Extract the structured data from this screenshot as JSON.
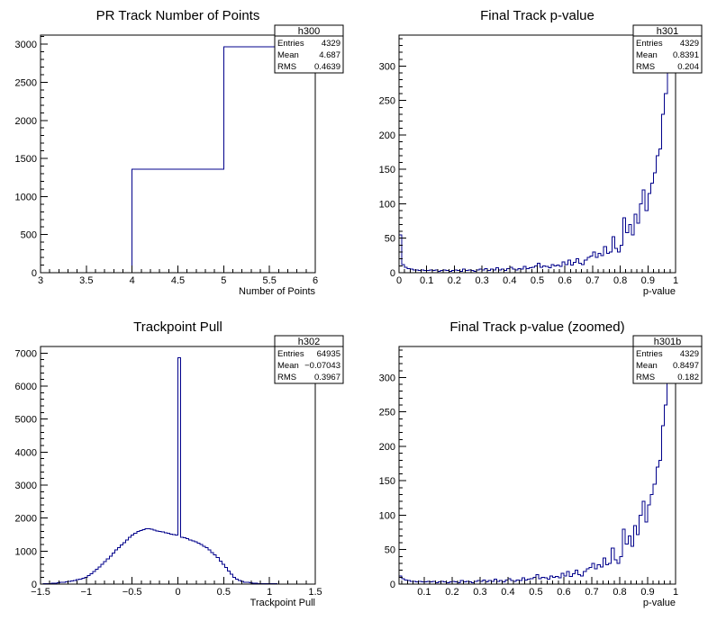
{
  "style": {
    "line_color": "#00008b",
    "axis_color": "#000000",
    "box_fill": "#ffffff"
  },
  "chart_data": [
    {
      "id": "h300",
      "type": "histogram",
      "title": "PR Track Number of Points",
      "xlabel": "Number of Points",
      "ylabel": "",
      "xlim": [
        3,
        6
      ],
      "ylim": [
        0,
        3120
      ],
      "xticks": [
        3,
        3.5,
        4,
        4.5,
        5,
        5.5,
        6
      ],
      "xtick_labels": [
        "3",
        "3.5",
        "4",
        "4.5",
        "5",
        "5.5",
        "6"
      ],
      "yticks": [
        0,
        500,
        1000,
        1500,
        2000,
        2500,
        3000
      ],
      "ytick_labels": [
        "0",
        "500",
        "1000",
        "1500",
        "2000",
        "2500",
        "3000"
      ],
      "bin_width": 1,
      "bins": [
        {
          "x0": 4,
          "x1": 5,
          "y": 1360
        },
        {
          "x0": 5,
          "x1": 6,
          "y": 2969
        }
      ],
      "stats": {
        "name": "h300",
        "rows": [
          {
            "label": "Entries",
            "value": "4329"
          },
          {
            "label": "Mean",
            "value": "4.687"
          },
          {
            "label": "RMS",
            "value": "0.4639"
          }
        ]
      }
    },
    {
      "id": "h301",
      "type": "histogram",
      "title": "Final Track p-value",
      "xlabel": "p-value",
      "ylabel": "",
      "xlim": [
        0,
        1
      ],
      "ylim": [
        0,
        345
      ],
      "xticks": [
        0,
        0.1,
        0.2,
        0.3,
        0.4,
        0.5,
        0.6,
        0.7,
        0.8,
        0.9,
        1
      ],
      "xtick_labels": [
        "0",
        "0.1",
        "0.2",
        "0.3",
        "0.4",
        "0.5",
        "0.6",
        "0.7",
        "0.8",
        "0.9",
        "1"
      ],
      "yticks": [
        0,
        50,
        100,
        150,
        200,
        250,
        300
      ],
      "ytick_labels": [
        "0",
        "50",
        "100",
        "150",
        "200",
        "250",
        "300"
      ],
      "bin_start": 0,
      "bin_width": 0.01,
      "values": [
        55,
        12,
        8,
        6,
        5,
        4,
        4,
        3,
        4,
        3,
        3,
        4,
        3,
        4,
        2,
        3,
        4,
        3,
        2,
        3,
        4,
        3,
        2,
        5,
        3,
        4,
        3,
        2,
        4,
        5,
        4,
        6,
        3,
        5,
        4,
        7,
        4,
        5,
        3,
        6,
        8,
        5,
        4,
        6,
        5,
        9,
        6,
        7,
        8,
        10,
        14,
        8,
        10,
        9,
        7,
        12,
        10,
        11,
        9,
        16,
        12,
        18,
        11,
        15,
        20,
        14,
        12,
        18,
        22,
        24,
        30,
        22,
        28,
        25,
        38,
        28,
        30,
        52,
        35,
        30,
        40,
        80,
        58,
        70,
        55,
        85,
        72,
        100,
        120,
        90,
        115,
        130,
        145,
        170,
        180,
        230,
        260,
        300,
        340,
        345
      ],
      "stats": {
        "name": "h301",
        "rows": [
          {
            "label": "Entries",
            "value": "4329"
          },
          {
            "label": "Mean",
            "value": "0.8391"
          },
          {
            "label": "RMS",
            "value": "0.204"
          }
        ]
      }
    },
    {
      "id": "h302",
      "type": "histogram",
      "title": "Trackpoint Pull",
      "xlabel": "Trackpoint Pull",
      "ylabel": "",
      "xlim": [
        -1.5,
        1.5
      ],
      "ylim": [
        0,
        7200
      ],
      "xticks": [
        -1.5,
        -1,
        -0.5,
        0,
        0.5,
        1,
        1.5
      ],
      "xtick_labels": [
        "−1.5",
        "−1",
        "−0.5",
        "0",
        "0.5",
        "1",
        "1.5"
      ],
      "yticks": [
        0,
        1000,
        2000,
        3000,
        4000,
        5000,
        6000,
        7000
      ],
      "ytick_labels": [
        "0",
        "1000",
        "2000",
        "3000",
        "4000",
        "5000",
        "6000",
        "7000"
      ],
      "bin_start": -1.5,
      "bin_width": 0.03,
      "values": [
        5,
        10,
        15,
        20,
        25,
        30,
        40,
        50,
        60,
        70,
        80,
        90,
        110,
        130,
        150,
        180,
        210,
        260,
        320,
        380,
        450,
        520,
        600,
        680,
        760,
        850,
        940,
        1030,
        1100,
        1180,
        1260,
        1340,
        1420,
        1490,
        1540,
        1590,
        1620,
        1650,
        1680,
        1680,
        1660,
        1640,
        1610,
        1600,
        1580,
        1560,
        1540,
        1520,
        1500,
        1480,
        6860,
        1420,
        1400,
        1380,
        1340,
        1310,
        1280,
        1240,
        1200,
        1150,
        1100,
        1040,
        960,
        880,
        800,
        700,
        600,
        500,
        400,
        300,
        210,
        150,
        110,
        80,
        60,
        50,
        40,
        30,
        25,
        20,
        16,
        14,
        12,
        10,
        8,
        7,
        6,
        5,
        4,
        4,
        3,
        3,
        2,
        2,
        2,
        2,
        1,
        1,
        1,
        1
      ],
      "stats": {
        "name": "h302",
        "rows": [
          {
            "label": "Entries",
            "value": "64935"
          },
          {
            "label": "Mean",
            "value": "−0.07043"
          },
          {
            "label": "RMS",
            "value": "0.3967"
          }
        ]
      }
    },
    {
      "id": "h301b",
      "type": "histogram",
      "title": "Final Track p-value (zoomed)",
      "xlabel": "p-value",
      "ylabel": "",
      "xlim": [
        0.01,
        1
      ],
      "ylim": [
        0,
        345
      ],
      "xticks": [
        0.1,
        0.2,
        0.3,
        0.4,
        0.5,
        0.6,
        0.7,
        0.8,
        0.9,
        1
      ],
      "xtick_labels": [
        "0.1",
        "0.2",
        "0.3",
        "0.4",
        "0.5",
        "0.6",
        "0.7",
        "0.8",
        "0.9",
        "1"
      ],
      "yticks": [
        0,
        50,
        100,
        150,
        200,
        250,
        300
      ],
      "ytick_labels": [
        "0",
        "50",
        "100",
        "150",
        "200",
        "250",
        "300"
      ],
      "bin_start": 0.01,
      "bin_width": 0.01,
      "values": [
        12,
        8,
        6,
        5,
        4,
        4,
        3,
        4,
        3,
        3,
        4,
        3,
        4,
        2,
        3,
        4,
        3,
        2,
        3,
        4,
        3,
        2,
        5,
        3,
        4,
        3,
        2,
        4,
        5,
        4,
        6,
        3,
        5,
        4,
        7,
        4,
        5,
        3,
        6,
        8,
        5,
        4,
        6,
        5,
        9,
        6,
        7,
        8,
        10,
        14,
        8,
        10,
        9,
        7,
        12,
        10,
        11,
        9,
        16,
        12,
        18,
        11,
        15,
        20,
        14,
        12,
        18,
        22,
        24,
        30,
        22,
        28,
        25,
        38,
        28,
        30,
        52,
        35,
        30,
        40,
        80,
        58,
        70,
        55,
        85,
        72,
        100,
        120,
        90,
        115,
        130,
        145,
        170,
        180,
        230,
        260,
        300,
        340,
        345
      ],
      "stats": {
        "name": "h301b",
        "rows": [
          {
            "label": "Entries",
            "value": "4329"
          },
          {
            "label": "Mean",
            "value": "0.8497"
          },
          {
            "label": "RMS",
            "value": "0.182"
          }
        ]
      }
    }
  ]
}
